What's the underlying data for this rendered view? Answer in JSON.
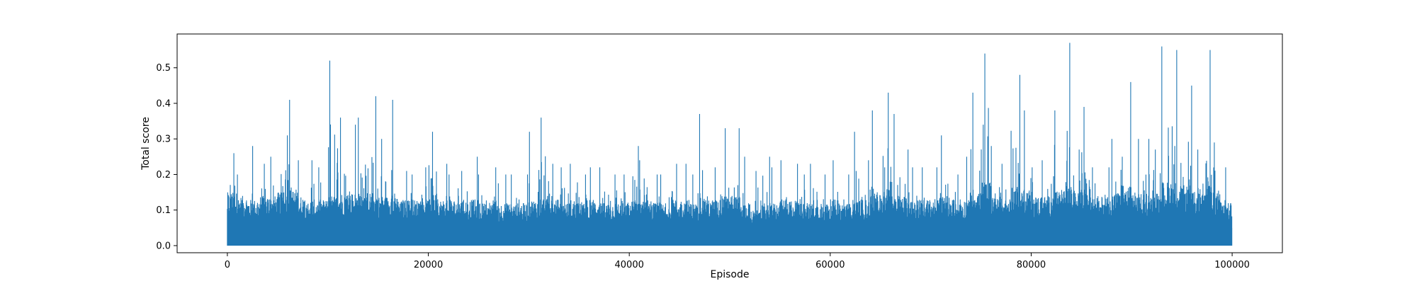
{
  "chart_data": {
    "type": "line",
    "title": "",
    "xlabel": "Episode",
    "ylabel": "Total score",
    "xlim": [
      -5000,
      105000
    ],
    "ylim": [
      -0.02,
      0.595
    ],
    "x_ticks": [
      0,
      20000,
      40000,
      60000,
      80000,
      100000
    ],
    "x_tick_labels": [
      "0",
      "20000",
      "40000",
      "60000",
      "80000",
      "100000"
    ],
    "y_ticks": [
      0.0,
      0.1,
      0.2,
      0.3,
      0.4,
      0.5
    ],
    "y_tick_labels": [
      "0.0",
      "0.1",
      "0.2",
      "0.3",
      "0.4",
      "0.5"
    ],
    "grid": false,
    "legend": "none",
    "series_color": "#1f77b4",
    "episodes": 100000,
    "series": [
      {
        "x_start": 0,
        "x_step": 1000,
        "baseline": 0.0,
        "envelope_max": [
          0.26,
          0.2,
          0.28,
          0.23,
          0.25,
          0.31,
          0.41,
          0.24,
          0.24,
          0.22,
          0.52,
          0.36,
          0.34,
          0.36,
          0.42,
          0.3,
          0.41,
          0.21,
          0.2,
          0.22,
          0.32,
          0.23,
          0.2,
          0.21,
          0.25,
          0.2,
          0.22,
          0.2,
          0.2,
          0.2,
          0.32,
          0.36,
          0.23,
          0.22,
          0.23,
          0.2,
          0.22,
          0.22,
          0.2,
          0.2,
          0.28,
          0.24,
          0.2,
          0.2,
          0.23,
          0.23,
          0.2,
          0.37,
          0.22,
          0.33,
          0.33,
          0.25,
          0.21,
          0.25,
          0.22,
          0.24,
          0.23,
          0.2,
          0.23,
          0.2,
          0.24,
          0.2,
          0.32,
          0.24,
          0.38,
          0.43,
          0.37,
          0.27,
          0.22,
          0.22,
          0.22,
          0.31,
          0.2,
          0.25,
          0.43,
          0.54,
          0.28,
          0.23,
          0.48,
          0.38,
          0.22,
          0.24,
          0.38,
          0.57,
          0.27,
          0.39,
          0.22,
          0.22,
          0.3,
          0.46,
          0.3,
          0.3,
          0.27,
          0.56,
          0.55,
          0.45,
          0.27,
          0.55,
          0.29,
          0.22
        ],
        "typical_max": [
          0.15,
          0.14,
          0.13,
          0.14,
          0.14,
          0.15,
          0.16,
          0.14,
          0.13,
          0.13,
          0.14,
          0.15,
          0.15,
          0.15,
          0.15,
          0.14,
          0.15,
          0.13,
          0.13,
          0.13,
          0.13,
          0.13,
          0.13,
          0.13,
          0.13,
          0.12,
          0.13,
          0.12,
          0.12,
          0.12,
          0.13,
          0.14,
          0.13,
          0.12,
          0.13,
          0.12,
          0.13,
          0.12,
          0.12,
          0.12,
          0.13,
          0.13,
          0.12,
          0.12,
          0.13,
          0.13,
          0.12,
          0.14,
          0.13,
          0.14,
          0.14,
          0.12,
          0.1,
          0.12,
          0.12,
          0.13,
          0.13,
          0.12,
          0.12,
          0.12,
          0.13,
          0.12,
          0.13,
          0.13,
          0.15,
          0.16,
          0.15,
          0.14,
          0.13,
          0.13,
          0.13,
          0.14,
          0.12,
          0.13,
          0.16,
          0.18,
          0.15,
          0.13,
          0.17,
          0.16,
          0.14,
          0.14,
          0.16,
          0.18,
          0.15,
          0.16,
          0.14,
          0.14,
          0.15,
          0.17,
          0.15,
          0.15,
          0.15,
          0.18,
          0.18,
          0.17,
          0.15,
          0.2,
          0.15,
          0.12
        ]
      }
    ]
  }
}
